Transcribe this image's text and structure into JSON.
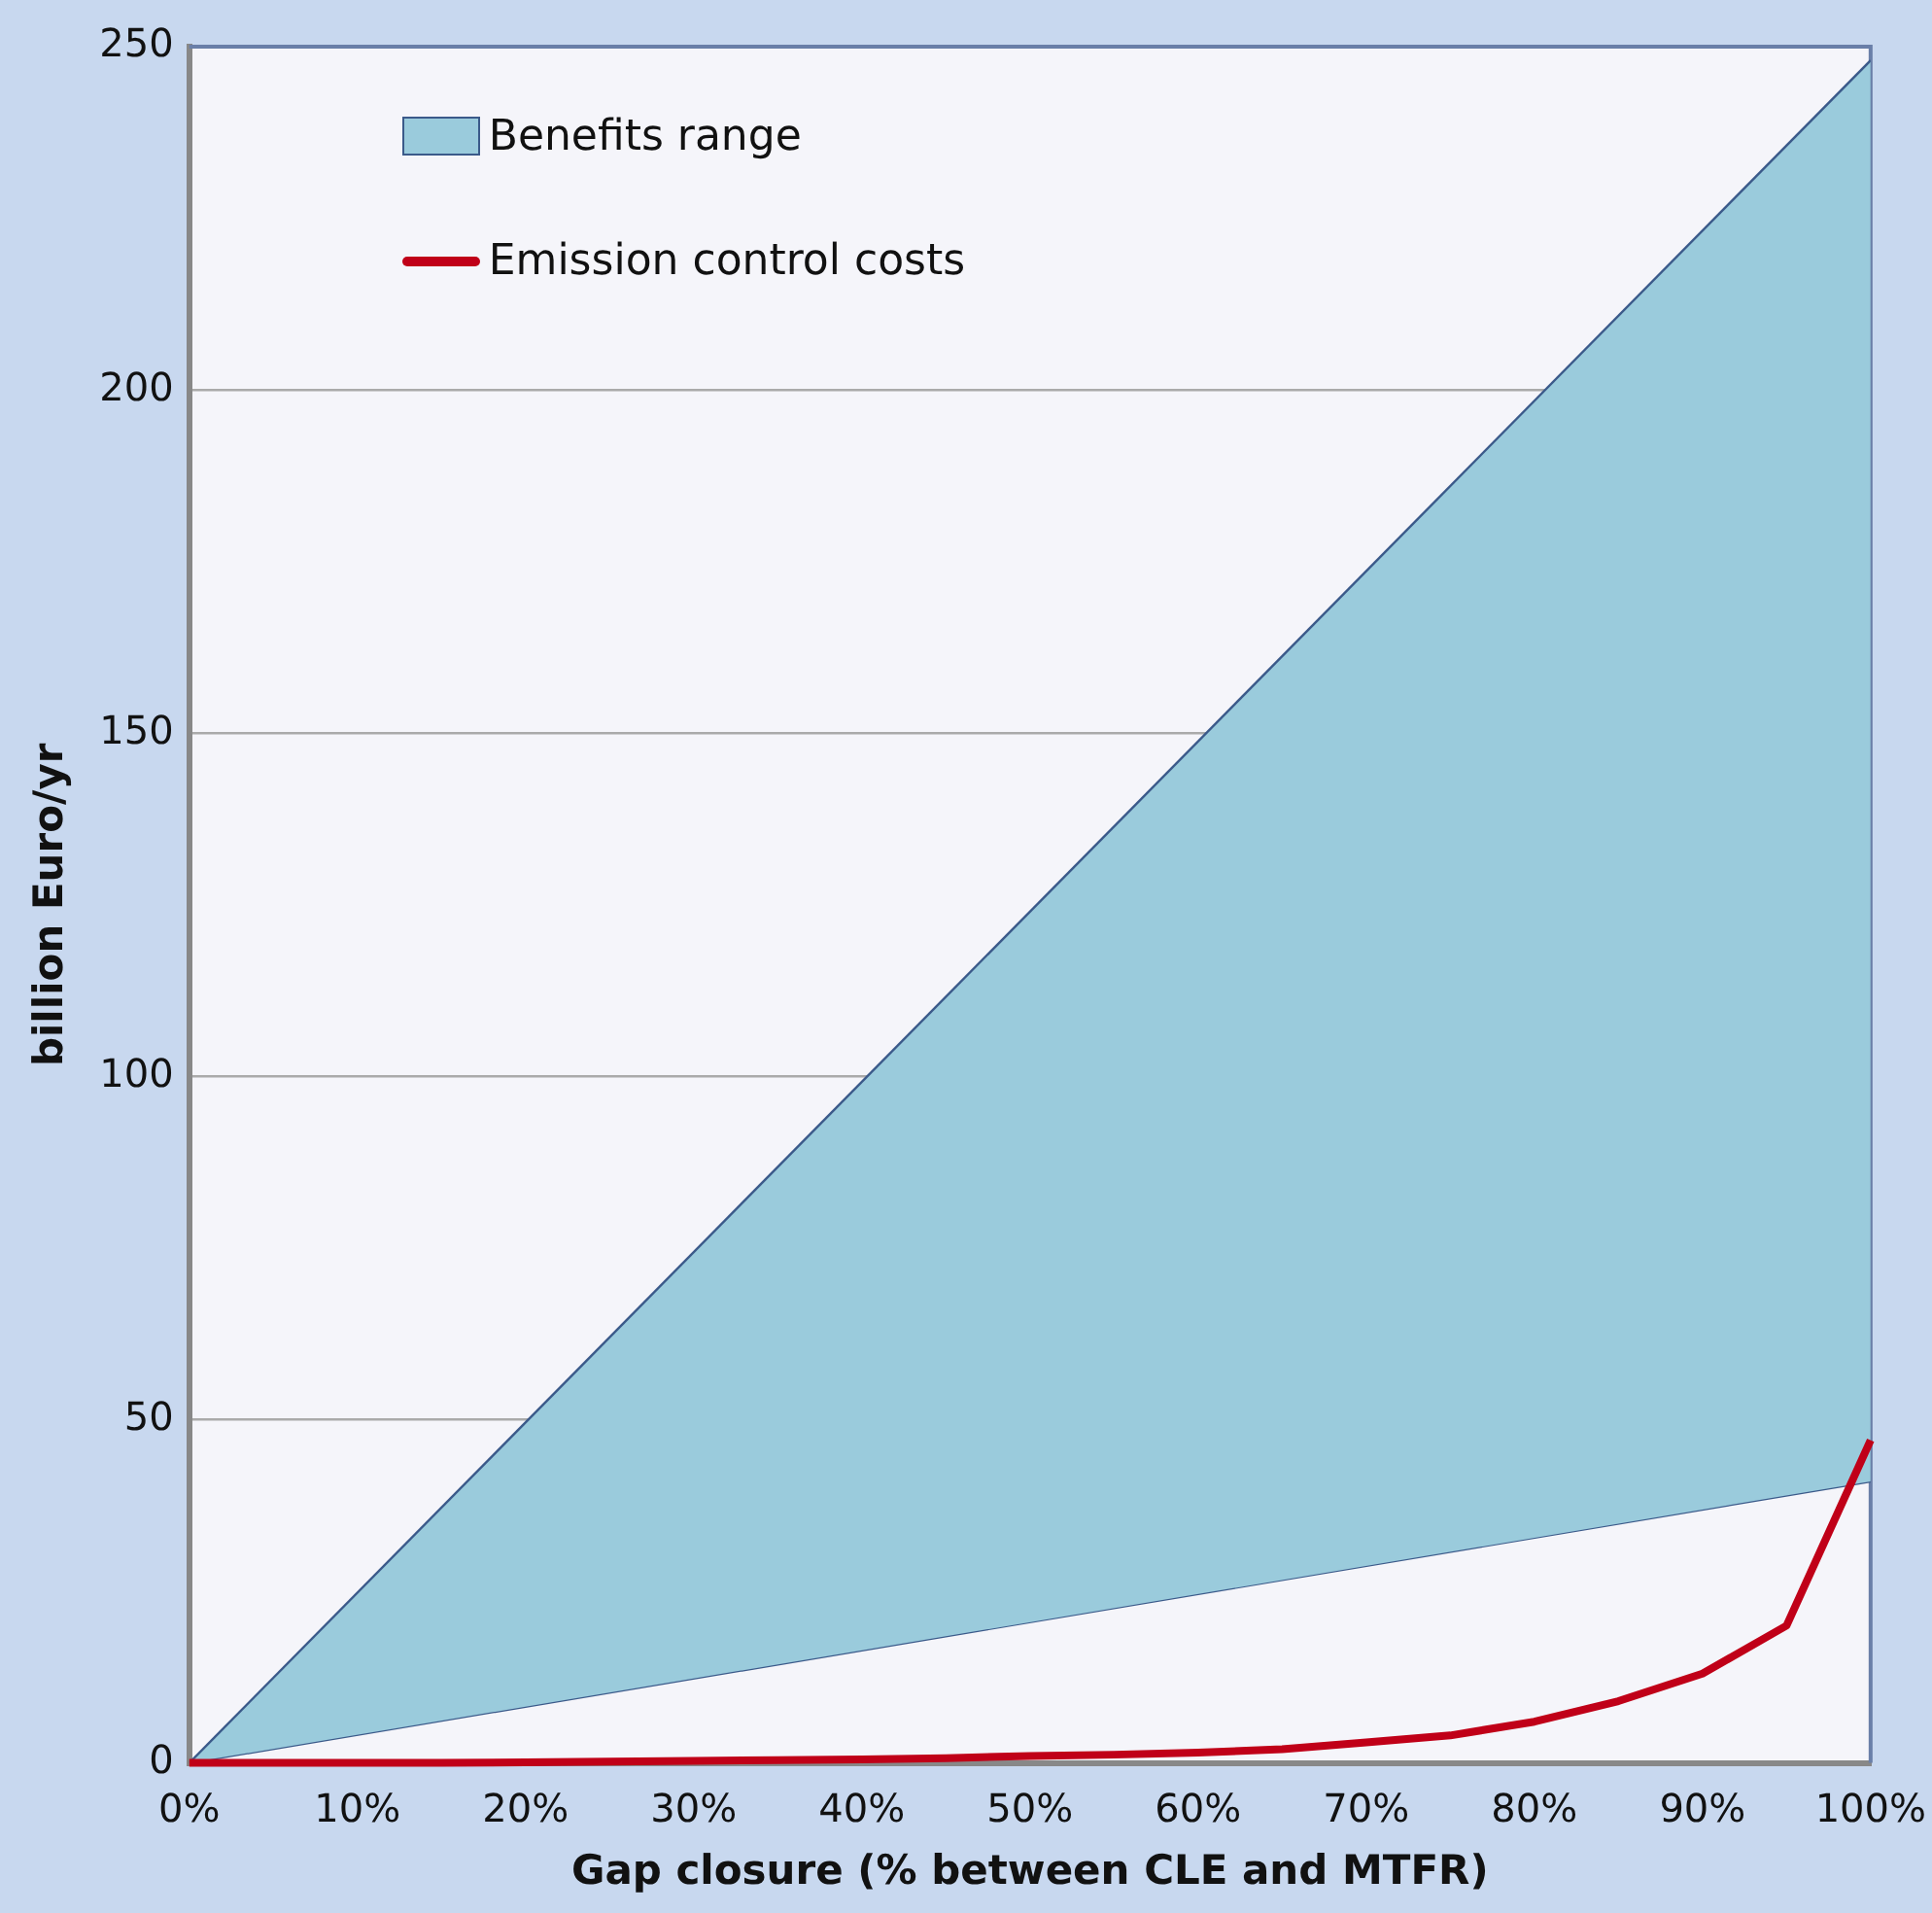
{
  "chart_data": {
    "type": "line",
    "xlabel": "Gap closure (% between CLE and MTFR)",
    "ylabel": "billion Euro/yr",
    "xlim": [
      0,
      100
    ],
    "xticks": [
      {
        "value": 0,
        "label": "0%"
      },
      {
        "value": 10,
        "label": "10%"
      },
      {
        "value": 20,
        "label": "20%"
      },
      {
        "value": 30,
        "label": "30%"
      },
      {
        "value": 40,
        "label": "40%"
      },
      {
        "value": 50,
        "label": "50%"
      },
      {
        "value": 60,
        "label": "60%"
      },
      {
        "value": 70,
        "label": "70%"
      },
      {
        "value": 80,
        "label": "80%"
      },
      {
        "value": 90,
        "label": "90%"
      },
      {
        "value": 100,
        "label": "100%"
      }
    ],
    "ylim": [
      0,
      250
    ],
    "yticks": [
      0,
      50,
      100,
      150,
      200,
      250
    ],
    "grid": "y",
    "legend": "top left",
    "marker": "none",
    "series": [
      {
        "type": "line",
        "color": "#3b5a8a",
        "x": [
          0,
          100
        ],
        "values": [
          0,
          41
        ]
      },
      {
        "name": "Benefits range",
        "type": "area",
        "color": "#9acbdc",
        "x": [
          0,
          100
        ],
        "values": [
          0,
          248
        ]
      },
      {
        "name": "Emission control costs",
        "color": "#c00018",
        "line_style": "solid",
        "x": [
          0,
          5,
          10,
          15,
          20,
          25,
          30,
          35,
          40,
          45,
          50,
          55,
          60,
          65,
          70,
          75,
          80,
          85,
          90,
          95,
          100
        ],
        "values": [
          0,
          0,
          0,
          0,
          0.1,
          0.2,
          0.3,
          0.4,
          0.5,
          0.7,
          1,
          1.2,
          1.5,
          2,
          3,
          4,
          6,
          9,
          13,
          20,
          47
        ]
      }
    ]
  }
}
